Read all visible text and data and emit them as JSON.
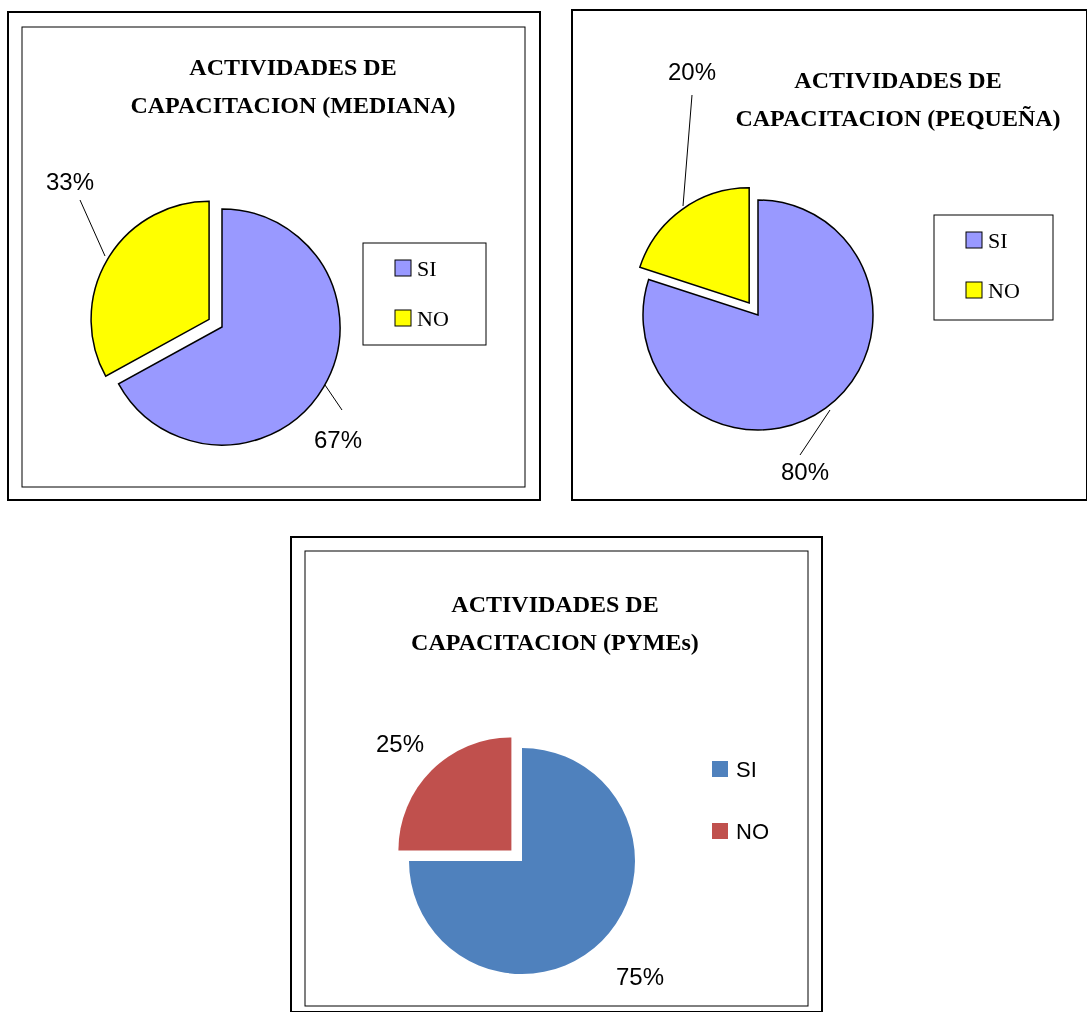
{
  "chart_data": [
    {
      "type": "pie",
      "title": "ACTIVIDADES DE CAPACITACION (MEDIANA)",
      "categories": [
        "SI",
        "NO"
      ],
      "values": [
        67,
        33
      ],
      "colors": [
        "#9999ff",
        "#ffff00"
      ],
      "value_labels": [
        "67%",
        "33%"
      ],
      "legend": "right"
    },
    {
      "type": "pie",
      "title": "ACTIVIDADES DE CAPACITACION (PEQUEÑA)",
      "categories": [
        "SI",
        "NO"
      ],
      "values": [
        80,
        20
      ],
      "colors": [
        "#9999ff",
        "#ffff00"
      ],
      "value_labels": [
        "80%",
        "20%"
      ],
      "legend": "right"
    },
    {
      "type": "pie",
      "title": "ACTIVIDADES DE CAPACITACION (PYMEs)",
      "categories": [
        "SI",
        "NO"
      ],
      "values": [
        75,
        25
      ],
      "colors": [
        "#4f81bd",
        "#c0504d"
      ],
      "value_labels": [
        "75%",
        "25%"
      ],
      "legend": "right"
    }
  ]
}
